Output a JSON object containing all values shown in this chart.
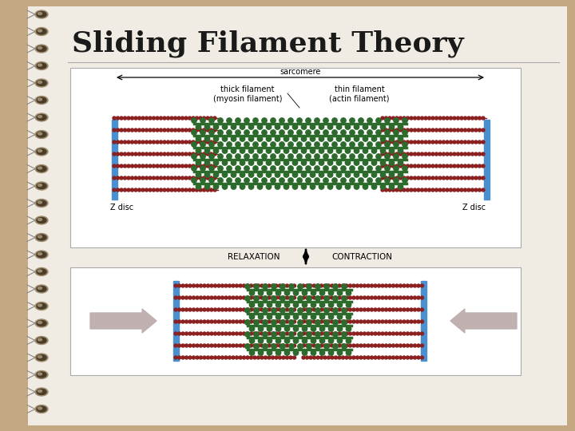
{
  "title": "Sliding Filament Theory",
  "background_outer": "#c4a882",
  "background_inner": "#f0ece4",
  "diagram_bg": "#ffffff",
  "title_fontsize": 26,
  "title_color": "#1a1a1a",
  "spiral_count": 24,
  "actin_color": "#8b2020",
  "myosin_color": "#2d6b2d",
  "z_disc_color": "#4a90d0",
  "label_sarcomere": "sarcomere",
  "label_thick": "thick filament\n(myosin filament)",
  "label_thin": "thin filament\n(actin filament)",
  "label_z_disc": "Z disc",
  "label_relaxation": "RELAXATION",
  "label_contraction": "CONTRACTION"
}
